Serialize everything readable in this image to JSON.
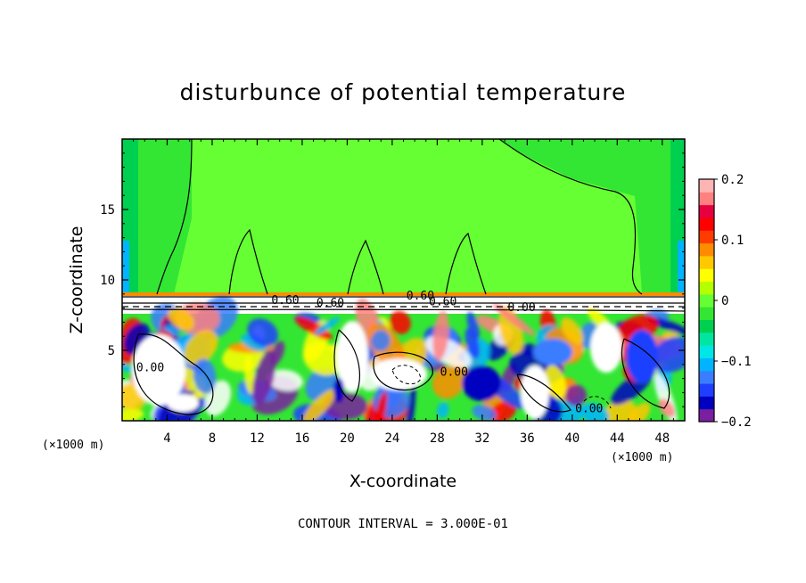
{
  "chart_data": {
    "type": "heatmap",
    "title": "disturbunce of potential temperature",
    "xlabel": "X-coordinate",
    "ylabel": "Z-coordinate",
    "x_unit": "(×1000 m)",
    "y_unit": "(×1000 m)",
    "xlim": [
      0,
      50
    ],
    "ylim": [
      0,
      20
    ],
    "x_ticks": [
      "4",
      "8",
      "12",
      "16",
      "20",
      "24",
      "28",
      "32",
      "36",
      "40",
      "44",
      "48"
    ],
    "x_tick_values": [
      4,
      8,
      12,
      16,
      20,
      24,
      28,
      32,
      36,
      40,
      44,
      48
    ],
    "y_ticks": [
      "5",
      "10",
      "15"
    ],
    "y_tick_values": [
      5,
      10,
      15
    ],
    "colorbar": {
      "ticks": [
        "0.2",
        "0.1",
        "0",
        "−0.1",
        "−0.2"
      ],
      "tick_values": [
        0.2,
        0.1,
        0,
        -0.1,
        -0.2
      ],
      "range": [
        -0.2,
        0.2
      ],
      "colors": [
        "#7a1fa0",
        "#0000c0",
        "#1f3fff",
        "#3b7dff",
        "#00b4ff",
        "#00e6e6",
        "#00e6a0",
        "#00d050",
        "#33e633",
        "#66ff33",
        "#b4ff00",
        "#ffff00",
        "#ffc800",
        "#ff8c00",
        "#ff3c00",
        "#ff0000",
        "#e60040",
        "#ff8080",
        "#ffb4b4"
      ]
    },
    "contour_labels": [
      "0.00",
      "0.00",
      "0.00",
      "0.60",
      "0.60",
      "0.60",
      "0.60",
      "0.00"
    ],
    "contour_label_values": [
      0.0,
      0.0,
      0.0,
      0.6,
      0.6,
      0.6,
      0.6,
      0.0
    ],
    "contour_label_points": [
      [
        2.5,
        3.5
      ],
      [
        29.5,
        3.2
      ],
      [
        41.5,
        0.6
      ],
      [
        14.5,
        8.3
      ],
      [
        18.5,
        8.1
      ],
      [
        26.5,
        8.6
      ],
      [
        28.5,
        8.2
      ],
      [
        35.5,
        7.8
      ]
    ],
    "contour_interval_text": "CONTOUR INTERVAL = 3.000E-01"
  }
}
